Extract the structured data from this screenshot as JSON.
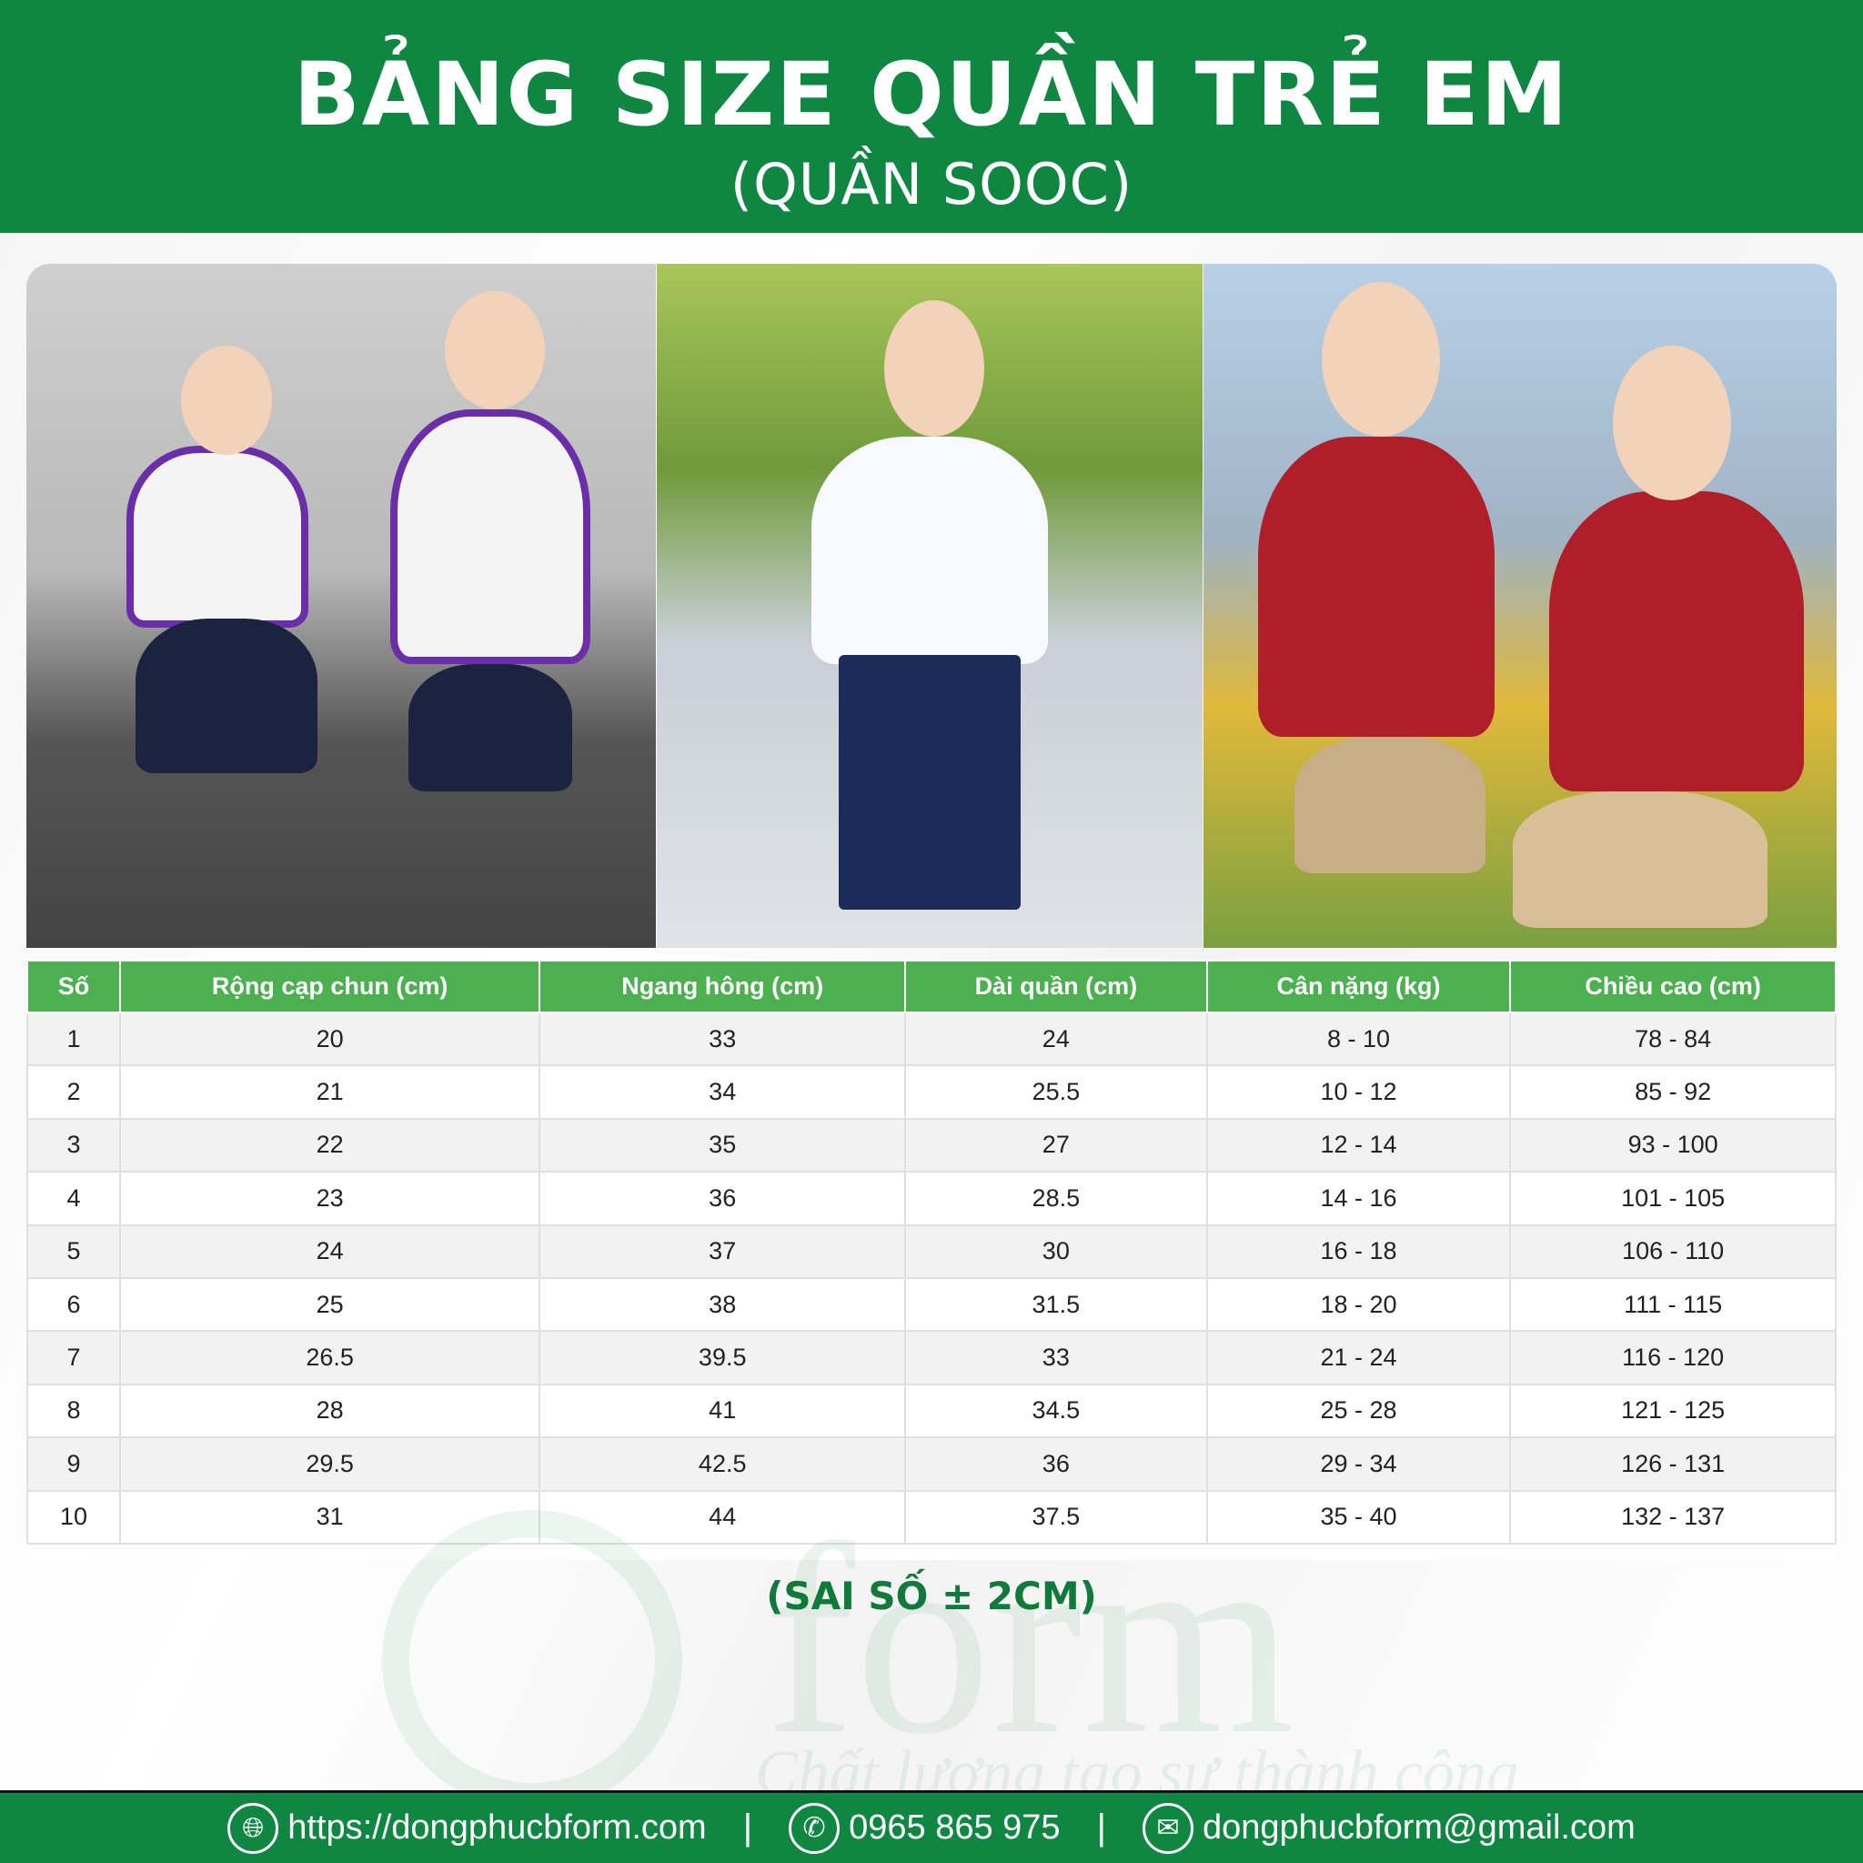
{
  "header": {
    "title": "BẢNG SIZE QUẦN TRẺ EM",
    "subtitle": "(QUẦN SOOC)"
  },
  "table": {
    "columns": [
      "Số",
      "Rộng cạp chun (cm)",
      "Ngang hông (cm)",
      "Dài quần (cm)",
      "Cân nặng (kg)",
      "Chiều cao (cm)"
    ],
    "rows": [
      [
        "1",
        "20",
        "33",
        "24",
        "8 - 10",
        "78 - 84"
      ],
      [
        "2",
        "21",
        "34",
        "25.5",
        "10 - 12",
        "85 - 92"
      ],
      [
        "3",
        "22",
        "35",
        "27",
        "12 - 14",
        "93 - 100"
      ],
      [
        "4",
        "23",
        "36",
        "28.5",
        "14 - 16",
        "101 - 105"
      ],
      [
        "5",
        "24",
        "37",
        "30",
        "16 - 18",
        "106 - 110"
      ],
      [
        "6",
        "25",
        "38",
        "31.5",
        "18 - 20",
        "111 - 115"
      ],
      [
        "7",
        "26.5",
        "39.5",
        "33",
        "21 - 24",
        "116 - 120"
      ],
      [
        "8",
        "28",
        "41",
        "34.5",
        "25 - 28",
        "121 - 125"
      ],
      [
        "9",
        "29.5",
        "42.5",
        "36",
        "29 - 34",
        "126 - 131"
      ],
      [
        "10",
        "31",
        "44",
        "37.5",
        "35 - 40",
        "132 - 137"
      ]
    ]
  },
  "note": "(SAI SỐ ± 2CM)",
  "watermark": {
    "text": "form",
    "slogan": "Chất lượng tạo sự thành công"
  },
  "footer": {
    "website": "https://dongphucbform.com",
    "phone": "0965 865 975",
    "email": "dongphucbform@gmail.com",
    "separator": "|",
    "icons": [
      "globe-icon",
      "phone-icon",
      "mail-icon"
    ]
  },
  "colors": {
    "brand_green": "#0f8642",
    "table_header": "#4caf50"
  }
}
